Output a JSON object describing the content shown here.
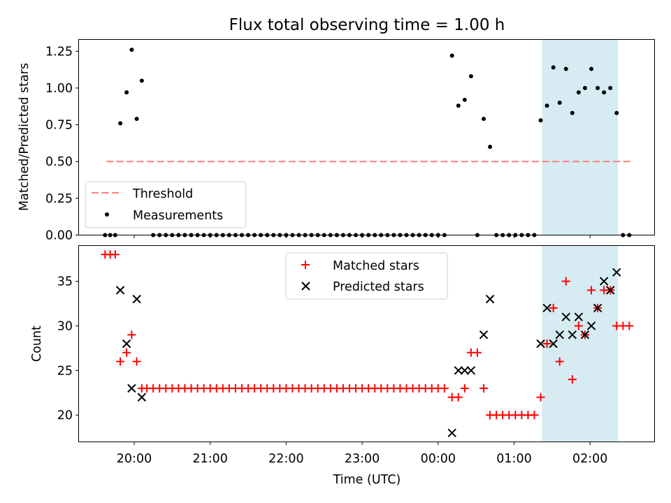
{
  "chart_data": {
    "type": "scatter",
    "title": "Flux total observing time = 1.00 h",
    "xlabel": "Time (UTC)",
    "x_ticks": [
      "20:00",
      "21:00",
      "22:00",
      "23:00",
      "00:00",
      "01:00",
      "02:00"
    ],
    "shaded_interval": {
      "x_start": "01:22",
      "x_end": "02:22",
      "color": "#add8e6"
    },
    "top_panel": {
      "ylabel": "Matched/Predicted stars",
      "ylim": [
        0,
        1.33
      ],
      "y_ticks": [
        "0.00",
        "0.25",
        "0.50",
        "0.75",
        "1.00",
        "1.25"
      ],
      "legend_position": "lower-left",
      "threshold": {
        "name": "Threshold",
        "value": 0.5,
        "x_start": "19:38",
        "x_end": "02:32",
        "color": "#ff7f7f"
      },
      "series": [
        {
          "name": "Measurements",
          "color": "#000000",
          "points": [
            [
              "19:37",
              0
            ],
            [
              "19:41",
              0
            ],
            [
              "19:45",
              0
            ],
            [
              "19:49",
              0.76
            ],
            [
              "19:54",
              0.97
            ],
            [
              "19:58",
              1.26
            ],
            [
              "20:02",
              0.79
            ],
            [
              "20:06",
              1.05
            ],
            [
              "20:15",
              0
            ],
            [
              "20:20",
              0
            ],
            [
              "20:25",
              0
            ],
            [
              "20:30",
              0
            ],
            [
              "20:35",
              0
            ],
            [
              "20:40",
              0
            ],
            [
              "20:45",
              0
            ],
            [
              "20:50",
              0
            ],
            [
              "20:55",
              0
            ],
            [
              "21:00",
              0
            ],
            [
              "21:05",
              0
            ],
            [
              "21:10",
              0
            ],
            [
              "21:15",
              0
            ],
            [
              "21:20",
              0
            ],
            [
              "21:25",
              0
            ],
            [
              "21:30",
              0
            ],
            [
              "21:35",
              0
            ],
            [
              "21:40",
              0
            ],
            [
              "21:45",
              0
            ],
            [
              "21:50",
              0
            ],
            [
              "21:55",
              0
            ],
            [
              "22:00",
              0
            ],
            [
              "22:05",
              0
            ],
            [
              "22:10",
              0
            ],
            [
              "22:15",
              0
            ],
            [
              "22:20",
              0
            ],
            [
              "22:25",
              0
            ],
            [
              "22:30",
              0
            ],
            [
              "22:35",
              0
            ],
            [
              "22:40",
              0
            ],
            [
              "22:45",
              0
            ],
            [
              "22:50",
              0
            ],
            [
              "22:55",
              0
            ],
            [
              "23:00",
              0
            ],
            [
              "23:05",
              0
            ],
            [
              "23:10",
              0
            ],
            [
              "23:15",
              0
            ],
            [
              "23:20",
              0
            ],
            [
              "23:25",
              0
            ],
            [
              "23:30",
              0
            ],
            [
              "23:35",
              0
            ],
            [
              "23:40",
              0
            ],
            [
              "23:45",
              0
            ],
            [
              "23:50",
              0
            ],
            [
              "23:55",
              0
            ],
            [
              "00:00",
              0
            ],
            [
              "00:05",
              0
            ],
            [
              "00:11",
              1.22
            ],
            [
              "00:16",
              0.88
            ],
            [
              "00:21",
              0.92
            ],
            [
              "00:26",
              1.08
            ],
            [
              "00:31",
              0
            ],
            [
              "00:36",
              0.79
            ],
            [
              "00:41",
              0.6
            ],
            [
              "00:46",
              0
            ],
            [
              "00:51",
              0
            ],
            [
              "00:56",
              0
            ],
            [
              "01:01",
              0
            ],
            [
              "01:06",
              0
            ],
            [
              "01:11",
              0
            ],
            [
              "01:16",
              0
            ],
            [
              "01:21",
              0.78
            ],
            [
              "01:26",
              0.88
            ],
            [
              "01:31",
              1.14
            ],
            [
              "01:36",
              0.9
            ],
            [
              "01:41",
              1.13
            ],
            [
              "01:46",
              0.83
            ],
            [
              "01:51",
              0.97
            ],
            [
              "01:56",
              1.0
            ],
            [
              "02:01",
              1.13
            ],
            [
              "02:06",
              1.0
            ],
            [
              "02:11",
              0.97
            ],
            [
              "02:16",
              1.0
            ],
            [
              "02:21",
              0.83
            ],
            [
              "02:26",
              0
            ],
            [
              "02:31",
              0
            ]
          ]
        }
      ]
    },
    "bottom_panel": {
      "ylabel": "Count",
      "ylim": [
        17,
        39
      ],
      "y_ticks": [
        "20",
        "25",
        "30",
        "35"
      ],
      "legend_position": "upper-center",
      "series": [
        {
          "name": "Matched stars",
          "color": "#ff0000",
          "marker": "+",
          "points": [
            [
              "19:37",
              38
            ],
            [
              "19:41",
              38
            ],
            [
              "19:45",
              38
            ],
            [
              "19:49",
              26
            ],
            [
              "19:54",
              27
            ],
            [
              "19:58",
              29
            ],
            [
              "20:02",
              26
            ],
            [
              "20:06",
              23
            ],
            [
              "20:10",
              23
            ],
            [
              "20:15",
              23
            ],
            [
              "20:20",
              23
            ],
            [
              "20:25",
              23
            ],
            [
              "20:30",
              23
            ],
            [
              "20:35",
              23
            ],
            [
              "20:40",
              23
            ],
            [
              "20:45",
              23
            ],
            [
              "20:50",
              23
            ],
            [
              "20:55",
              23
            ],
            [
              "21:00",
              23
            ],
            [
              "21:05",
              23
            ],
            [
              "21:10",
              23
            ],
            [
              "21:15",
              23
            ],
            [
              "21:20",
              23
            ],
            [
              "21:25",
              23
            ],
            [
              "21:30",
              23
            ],
            [
              "21:35",
              23
            ],
            [
              "21:40",
              23
            ],
            [
              "21:45",
              23
            ],
            [
              "21:50",
              23
            ],
            [
              "21:55",
              23
            ],
            [
              "22:00",
              23
            ],
            [
              "22:05",
              23
            ],
            [
              "22:10",
              23
            ],
            [
              "22:15",
              23
            ],
            [
              "22:20",
              23
            ],
            [
              "22:25",
              23
            ],
            [
              "22:30",
              23
            ],
            [
              "22:35",
              23
            ],
            [
              "22:40",
              23
            ],
            [
              "22:45",
              23
            ],
            [
              "22:50",
              23
            ],
            [
              "22:55",
              23
            ],
            [
              "23:00",
              23
            ],
            [
              "23:05",
              23
            ],
            [
              "23:10",
              23
            ],
            [
              "23:15",
              23
            ],
            [
              "23:20",
              23
            ],
            [
              "23:25",
              23
            ],
            [
              "23:30",
              23
            ],
            [
              "23:35",
              23
            ],
            [
              "23:40",
              23
            ],
            [
              "23:45",
              23
            ],
            [
              "23:50",
              23
            ],
            [
              "23:55",
              23
            ],
            [
              "00:00",
              23
            ],
            [
              "00:05",
              23
            ],
            [
              "00:11",
              22
            ],
            [
              "00:16",
              22
            ],
            [
              "00:21",
              23
            ],
            [
              "00:26",
              27
            ],
            [
              "00:31",
              27
            ],
            [
              "00:36",
              23
            ],
            [
              "00:41",
              20
            ],
            [
              "00:46",
              20
            ],
            [
              "00:51",
              20
            ],
            [
              "00:56",
              20
            ],
            [
              "01:01",
              20
            ],
            [
              "01:06",
              20
            ],
            [
              "01:11",
              20
            ],
            [
              "01:16",
              20
            ],
            [
              "01:21",
              22
            ],
            [
              "01:26",
              28
            ],
            [
              "01:31",
              32
            ],
            [
              "01:36",
              26
            ],
            [
              "01:41",
              35
            ],
            [
              "01:46",
              24
            ],
            [
              "01:51",
              30
            ],
            [
              "01:56",
              29
            ],
            [
              "02:01",
              34
            ],
            [
              "02:06",
              32
            ],
            [
              "02:11",
              34
            ],
            [
              "02:16",
              34
            ],
            [
              "02:21",
              30
            ],
            [
              "02:26",
              30
            ],
            [
              "02:31",
              30
            ]
          ]
        },
        {
          "name": "Predicted stars",
          "color": "#000000",
          "marker": "x",
          "points": [
            [
              "19:49",
              34
            ],
            [
              "19:54",
              28
            ],
            [
              "19:58",
              23
            ],
            [
              "20:02",
              33
            ],
            [
              "20:06",
              22
            ],
            [
              "00:11",
              18
            ],
            [
              "00:16",
              25
            ],
            [
              "00:21",
              25
            ],
            [
              "00:26",
              25
            ],
            [
              "00:36",
              29
            ],
            [
              "00:41",
              33
            ],
            [
              "01:21",
              28
            ],
            [
              "01:26",
              32
            ],
            [
              "01:31",
              28
            ],
            [
              "01:36",
              29
            ],
            [
              "01:41",
              31
            ],
            [
              "01:46",
              29
            ],
            [
              "01:51",
              31
            ],
            [
              "01:56",
              29
            ],
            [
              "02:01",
              30
            ],
            [
              "02:06",
              32
            ],
            [
              "02:11",
              35
            ],
            [
              "02:16",
              34
            ],
            [
              "02:21",
              36
            ]
          ]
        }
      ]
    }
  }
}
